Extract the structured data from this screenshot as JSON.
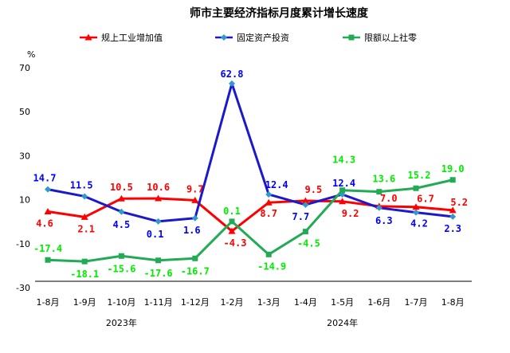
{
  "chart_data": {
    "type": "line",
    "title": "师市主要经济指标月度累计增长速度",
    "ylabel": "%",
    "ylim": [
      -30,
      70
    ],
    "yticks": [
      -30,
      -10,
      10,
      30,
      50,
      70
    ],
    "grid": false,
    "legend_position": "top",
    "categories": [
      "1-8月",
      "1-9月",
      "1-10月",
      "1-11月",
      "1-12月",
      "1-2月",
      "1-3月",
      "1-4月",
      "1-5月",
      "1-6月",
      "1-7月",
      "1-8月"
    ],
    "year_labels": [
      {
        "label": "2023年",
        "start_index": 0,
        "end_index": 4
      },
      {
        "label": "2024年",
        "start_index": 5,
        "end_index": 11
      }
    ],
    "series": [
      {
        "name": "规上工业增加值",
        "color": "#ff0000",
        "marker": "triangle",
        "values": [
          4.6,
          2.1,
          10.5,
          10.6,
          9.7,
          -4.3,
          8.7,
          9.5,
          9.2,
          7.0,
          6.7,
          5.2
        ],
        "labels": [
          "4.6",
          "2.1",
          "10.5",
          "10.6",
          "9.7",
          "-4.3",
          "8.7",
          "9.5",
          "9.2",
          "7.0",
          "6.7",
          "5.2"
        ]
      },
      {
        "name": "固定资产投资",
        "color": "#0000ff",
        "line_color": "#1a1acc",
        "marker": "diamond",
        "marker_color": "#3399cc",
        "values": [
          14.7,
          11.5,
          4.5,
          0.1,
          1.6,
          62.8,
          12.4,
          7.7,
          12.4,
          6.3,
          4.2,
          2.3
        ],
        "labels": [
          "14.7",
          "11.5",
          "4.5",
          "0.1",
          "1.6",
          "62.8",
          "12.4",
          "7.7",
          "12.4",
          "6.3",
          "4.2",
          "2.3"
        ]
      },
      {
        "name": "限额以上社零",
        "color": "#00ee00",
        "line_color": "#22aa55",
        "marker": "square",
        "values": [
          -17.4,
          -18.1,
          -15.6,
          -17.6,
          -16.7,
          0.1,
          -14.9,
          -4.5,
          14.3,
          13.6,
          15.2,
          19.0
        ],
        "labels": [
          "-17.4",
          "-18.1",
          "-15.6",
          "-17.6",
          "-16.7",
          "0.1",
          "-14.9",
          "-4.5",
          "14.3",
          "13.6",
          "15.2",
          "19.0"
        ]
      }
    ]
  }
}
